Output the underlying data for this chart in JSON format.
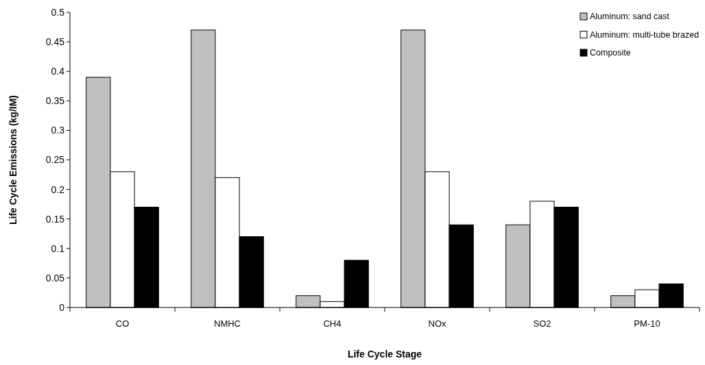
{
  "chart_data": {
    "type": "bar",
    "xlabel": "Life Cycle Stage",
    "ylabel": "Life Cycle Emissions (kg/IM)",
    "categories": [
      "CO",
      "NMHC",
      "CH4",
      "NOx",
      "SO2",
      "PM-10"
    ],
    "series": [
      {
        "name": "Aluminum: sand cast",
        "color": "#c0c0c0",
        "values": [
          0.39,
          0.47,
          0.02,
          0.47,
          0.14,
          0.02
        ]
      },
      {
        "name": "Aluminum: multi-tube brazed",
        "color": "#ffffff",
        "values": [
          0.23,
          0.22,
          0.01,
          0.23,
          0.18,
          0.03
        ]
      },
      {
        "name": "Composite",
        "color": "#000000",
        "values": [
          0.17,
          0.12,
          0.08,
          0.14,
          0.17,
          0.04
        ]
      }
    ],
    "ylim": [
      0,
      0.5
    ],
    "yticks": [
      0,
      0.05,
      0.1,
      0.15,
      0.2,
      0.25,
      0.3,
      0.35,
      0.4,
      0.45,
      0.5
    ],
    "grid": false,
    "legend": "top right"
  }
}
